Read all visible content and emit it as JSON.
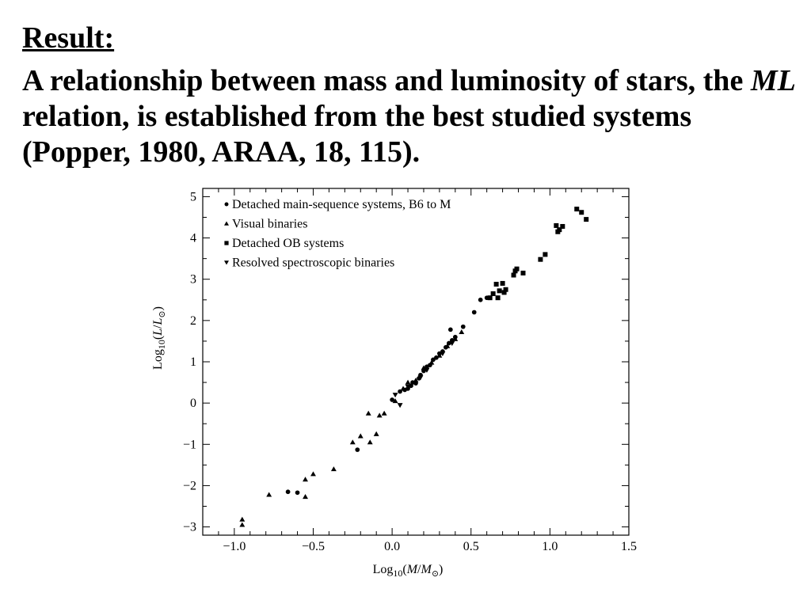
{
  "slide": {
    "heading": "Result:",
    "intro_before": "A relationship between mass and luminosity of stars, the ",
    "intro_italic": "ML",
    "intro_after": " relation, is established from the best studied systems (Popper, 1980, ARAA, 18, 115)."
  },
  "chart_data": {
    "type": "scatter",
    "title": "",
    "xlabel": "Log10(M/M⊙)",
    "ylabel": "Log10(L/L⊙)",
    "xlim": [
      -1.2,
      1.5
    ],
    "ylim": [
      -3.2,
      5.2
    ],
    "xticks": [
      -1.0,
      -0.5,
      0.0,
      0.5,
      1.0,
      1.5
    ],
    "xtick_labels": [
      "−1.0",
      "−0.5",
      "0.0",
      "0.5",
      "1.0",
      "1.5"
    ],
    "yticks": [
      -3,
      -2,
      -1,
      0,
      1,
      2,
      3,
      4,
      5
    ],
    "ytick_labels": [
      "−3",
      "−2",
      "−1",
      "0",
      "1",
      "2",
      "3",
      "4",
      "5"
    ],
    "grid": false,
    "legend_position": "top-left",
    "series": [
      {
        "name": "Detached main-sequence systems, B6 to M",
        "marker": "circle",
        "points": [
          [
            -0.66,
            -2.15
          ],
          [
            -0.6,
            -2.17
          ],
          [
            -0.22,
            -1.13
          ],
          [
            0.0,
            0.08
          ],
          [
            0.05,
            0.28
          ],
          [
            0.08,
            0.32
          ],
          [
            0.1,
            0.35
          ],
          [
            0.12,
            0.42
          ],
          [
            0.13,
            0.5
          ],
          [
            0.15,
            0.48
          ],
          [
            0.17,
            0.6
          ],
          [
            0.18,
            0.68
          ],
          [
            0.2,
            0.78
          ],
          [
            0.22,
            0.88
          ],
          [
            0.24,
            0.92
          ],
          [
            0.26,
            1.05
          ],
          [
            0.28,
            1.1
          ],
          [
            0.3,
            1.2
          ],
          [
            0.32,
            1.25
          ],
          [
            0.34,
            1.35
          ],
          [
            0.36,
            1.45
          ],
          [
            0.37,
            1.78
          ],
          [
            0.38,
            1.52
          ],
          [
            0.4,
            1.6
          ],
          [
            0.45,
            1.85
          ],
          [
            0.52,
            2.2
          ],
          [
            0.56,
            2.5
          ],
          [
            0.6,
            2.55
          ]
        ]
      },
      {
        "name": "Visual binaries",
        "marker": "triangle-up",
        "points": [
          [
            -0.95,
            -2.82
          ],
          [
            -0.95,
            -2.95
          ],
          [
            -0.78,
            -2.22
          ],
          [
            -0.55,
            -2.27
          ],
          [
            -0.55,
            -1.85
          ],
          [
            -0.5,
            -1.72
          ],
          [
            -0.37,
            -1.6
          ],
          [
            -0.25,
            -0.95
          ],
          [
            -0.2,
            -0.8
          ],
          [
            -0.14,
            -0.95
          ],
          [
            -0.1,
            -0.75
          ],
          [
            -0.15,
            -0.25
          ],
          [
            -0.08,
            -0.3
          ],
          [
            -0.05,
            -0.25
          ],
          [
            0.02,
            0.05
          ],
          [
            0.07,
            0.35
          ],
          [
            0.1,
            0.5
          ],
          [
            0.15,
            0.55
          ],
          [
            0.2,
            0.85
          ],
          [
            0.25,
            0.98
          ],
          [
            0.3,
            1.15
          ],
          [
            0.35,
            1.38
          ],
          [
            0.4,
            1.55
          ],
          [
            0.44,
            1.72
          ]
        ]
      },
      {
        "name": "Detached OB systems",
        "marker": "square",
        "points": [
          [
            0.62,
            2.55
          ],
          [
            0.64,
            2.65
          ],
          [
            0.66,
            2.88
          ],
          [
            0.67,
            2.55
          ],
          [
            0.68,
            2.72
          ],
          [
            0.7,
            2.9
          ],
          [
            0.71,
            2.68
          ],
          [
            0.72,
            2.75
          ],
          [
            0.77,
            3.1
          ],
          [
            0.78,
            3.2
          ],
          [
            0.79,
            3.25
          ],
          [
            0.83,
            3.15
          ],
          [
            0.94,
            3.48
          ],
          [
            0.97,
            3.6
          ],
          [
            1.04,
            4.3
          ],
          [
            1.05,
            4.15
          ],
          [
            1.06,
            4.2
          ],
          [
            1.08,
            4.28
          ],
          [
            1.17,
            4.7
          ],
          [
            1.2,
            4.62
          ],
          [
            1.23,
            4.45
          ]
        ]
      },
      {
        "name": "Resolved spectroscopic binaries",
        "marker": "triangle-down",
        "points": [
          [
            0.02,
            0.2
          ],
          [
            0.05,
            -0.05
          ],
          [
            0.1,
            0.4
          ],
          [
            0.18,
            0.62
          ],
          [
            0.22,
            0.8
          ],
          [
            0.32,
            1.2
          ],
          [
            0.38,
            1.45
          ]
        ]
      }
    ]
  }
}
